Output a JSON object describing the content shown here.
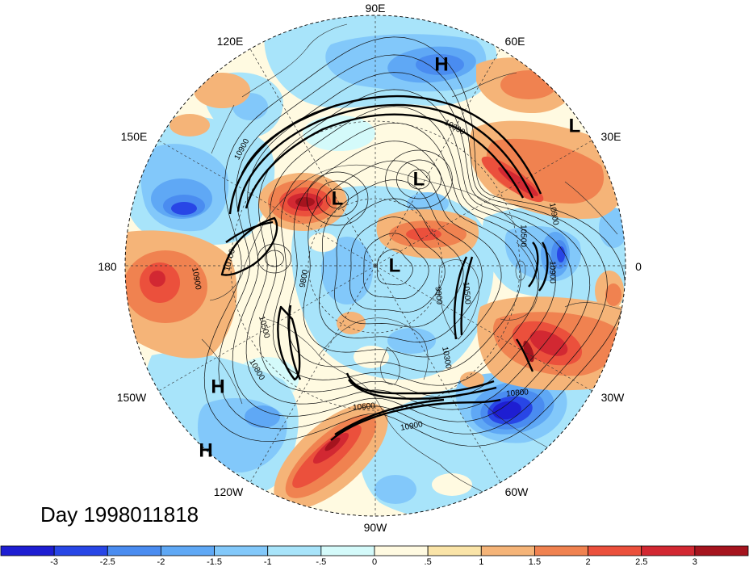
{
  "title": "Day 1998011818",
  "map": {
    "longitude_labels": [
      "90E",
      "60E",
      "30E",
      "0",
      "30W",
      "60W",
      "90W",
      "120W",
      "150W",
      "180",
      "150E",
      "120E"
    ],
    "pressure_centers": [
      "H",
      "L",
      "L",
      "L",
      "L",
      "H",
      "H"
    ],
    "contour_labels": [
      "10900",
      "10800",
      "10900",
      "10500",
      "10900",
      "10700",
      "10900",
      "9800",
      "10500",
      "10800",
      "9900",
      "10500",
      "10300",
      "10800",
      "10900",
      "10600"
    ]
  },
  "colorbar": {
    "ticks": [
      "-3",
      "-2.5",
      "-2",
      "-1.5",
      "-1",
      "-.5",
      "0",
      ".5",
      "1",
      "1.5",
      "2",
      "2.5",
      "3"
    ],
    "colors": [
      "#1e1ed2",
      "#2846e6",
      "#4a8cf0",
      "#5fa8f5",
      "#82c8fa",
      "#a8e4fa",
      "#d4fafa",
      "#fffae1",
      "#fae4a8",
      "#f5b478",
      "#f08250",
      "#eb503c",
      "#d22832",
      "#a5141e"
    ]
  }
}
